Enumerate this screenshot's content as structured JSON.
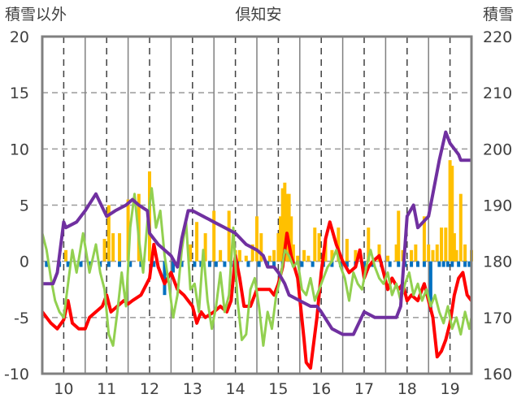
{
  "chart_data": {
    "type": "line",
    "title": "倶知安",
    "ylabel_left": "積雪以外",
    "ylabel_right": "積雪",
    "categories": [
      "10",
      "11",
      "12",
      "13",
      "14",
      "15",
      "16",
      "17",
      "18",
      "19"
    ],
    "ylim_left": [
      -10,
      20
    ],
    "ylim_right": [
      160,
      220
    ],
    "yticks_left": [
      "20",
      "15",
      "10",
      "5",
      "0",
      "-5",
      "-10"
    ],
    "yticks_right": [
      "220",
      "210",
      "200",
      "190",
      "180",
      "170",
      "160"
    ],
    "grid": {
      "x": "dashed",
      "y": "dashed"
    },
    "series": [
      {
        "name": "",
        "axis": "left",
        "color": "#ff0000",
        "x": [
          9.5,
          9.6,
          9.7,
          9.85,
          10.0,
          10.1,
          10.2,
          10.35,
          10.5,
          10.6,
          10.75,
          10.9,
          11.0,
          11.1,
          11.25,
          11.4,
          11.5,
          11.6,
          11.8,
          12.0,
          12.1,
          12.2,
          12.35,
          12.5,
          12.65,
          12.8,
          12.9,
          13.0,
          13.1,
          13.2,
          13.3,
          13.5,
          13.65,
          13.8,
          13.9,
          14.0,
          14.1,
          14.2,
          14.35,
          14.5,
          14.7,
          14.8,
          14.9,
          15.0,
          15.1,
          15.2,
          15.3,
          15.45,
          15.6,
          15.65,
          15.75,
          15.9,
          16.0,
          16.1,
          16.2,
          16.35,
          16.5,
          16.65,
          16.8,
          16.9,
          17.0,
          17.1,
          17.2,
          17.35,
          17.45,
          17.55,
          17.65,
          17.8,
          17.9,
          18.0,
          18.1,
          18.25,
          18.4,
          18.5,
          18.6,
          18.7,
          18.8,
          18.9,
          19.0,
          19.1,
          19.2,
          19.3,
          19.4,
          19.5
        ],
        "y": [
          -4.5,
          -5.0,
          -5.5,
          -6.0,
          -5.2,
          -3.5,
          -5.5,
          -6.0,
          -6.0,
          -5.0,
          -4.5,
          -4.0,
          -3.0,
          -4.5,
          -4.0,
          -3.5,
          -3.8,
          -3.5,
          -3.0,
          -1.5,
          1.5,
          -0.5,
          -2.0,
          -1.0,
          -2.5,
          -3.0,
          -3.5,
          -4.0,
          -5.5,
          -4.5,
          -5.0,
          -4.5,
          -4.0,
          -4.5,
          -3.5,
          0.5,
          -1.5,
          -4.0,
          -4.0,
          -2.5,
          -2.5,
          -2.5,
          -3.0,
          -2.0,
          -0.5,
          2.5,
          0.5,
          -1.5,
          -7.0,
          -9.0,
          -9.5,
          -5.0,
          -1.0,
          2.0,
          3.5,
          1.5,
          0.0,
          -1.0,
          -0.5,
          1.0,
          -1.5,
          -0.5,
          0.0,
          0.5,
          -1.0,
          -2.5,
          -1.5,
          -2.5,
          -2.0,
          -3.5,
          -3.0,
          -3.5,
          -2.0,
          -3.5,
          -5.0,
          -8.5,
          -8.0,
          -7.0,
          -5.5,
          -3.0,
          -1.5,
          -1.0,
          -3.0,
          -3.5
        ]
      },
      {
        "name": "",
        "axis": "left",
        "color": "#92d050",
        "x": [
          9.5,
          9.6,
          9.7,
          9.8,
          9.9,
          10.0,
          10.1,
          10.2,
          10.3,
          10.45,
          10.6,
          10.75,
          10.85,
          10.95,
          11.05,
          11.15,
          11.25,
          11.35,
          11.45,
          11.55,
          11.65,
          11.75,
          11.85,
          11.95,
          12.05,
          12.15,
          12.25,
          12.35,
          12.45,
          12.55,
          12.65,
          12.75,
          12.85,
          12.95,
          13.05,
          13.15,
          13.25,
          13.35,
          13.45,
          13.55,
          13.65,
          13.75,
          13.85,
          13.95,
          14.05,
          14.15,
          14.25,
          14.35,
          14.45,
          14.55,
          14.65,
          14.75,
          14.85,
          14.95,
          15.05,
          15.15,
          15.25,
          15.35,
          15.45,
          15.55,
          15.65,
          15.75,
          15.85,
          15.95,
          16.05,
          16.15,
          16.25,
          16.35,
          16.45,
          16.55,
          16.65,
          16.75,
          16.85,
          16.95,
          17.05,
          17.15,
          17.25,
          17.35,
          17.45,
          17.55,
          17.65,
          17.75,
          17.85,
          17.95,
          18.05,
          18.15,
          18.25,
          18.35,
          18.45,
          18.55,
          18.65,
          18.75,
          18.85,
          18.95,
          19.05,
          19.15,
          19.25,
          19.35,
          19.45,
          19.5
        ],
        "y": [
          2.5,
          1.0,
          -1.5,
          -3.5,
          -4.5,
          -5.0,
          -2.0,
          1.0,
          -1.0,
          2.5,
          -1.0,
          1.5,
          -1.0,
          -2.5,
          -6.5,
          -7.5,
          -4.5,
          -1.0,
          -4.0,
          3.0,
          6.0,
          2.0,
          -1.0,
          3.5,
          6.5,
          3.0,
          4.5,
          0.5,
          -2.0,
          -5.0,
          -3.0,
          1.0,
          3.5,
          -2.5,
          -2.0,
          -4.5,
          1.0,
          -3.5,
          -6.0,
          -4.0,
          -1.0,
          -4.5,
          -3.0,
          3.0,
          -3.5,
          -7.0,
          -6.5,
          -2.5,
          -1.5,
          -4.0,
          -7.5,
          -4.5,
          -6.0,
          -3.0,
          -1.5,
          1.0,
          0.5,
          -0.5,
          0.0,
          -2.5,
          -3.0,
          -1.5,
          -3.5,
          -2.5,
          -1.5,
          -0.5,
          0.0,
          1.0,
          -0.5,
          -1.5,
          -3.5,
          -1.0,
          -2.0,
          -2.5,
          -0.5,
          1.0,
          -0.5,
          -1.5,
          -2.0,
          -1.0,
          -3.0,
          -2.0,
          -3.5,
          -2.0,
          -1.0,
          -3.0,
          -2.0,
          -3.5,
          -2.5,
          -4.0,
          -3.0,
          -4.5,
          -5.5,
          -4.0,
          -6.0,
          -5.0,
          -6.5,
          -4.5,
          -6.0,
          -5.0
        ]
      },
      {
        "name": "",
        "axis": "right",
        "color": "#7030a0",
        "x": [
          9.5,
          9.75,
          9.85,
          10.0,
          10.05,
          10.3,
          10.5,
          10.75,
          11.0,
          11.2,
          11.45,
          11.6,
          11.75,
          11.95,
          12.0,
          12.2,
          12.5,
          12.65,
          12.75,
          12.9,
          13.0,
          13.25,
          13.5,
          13.75,
          14.0,
          14.25,
          14.5,
          14.65,
          14.75,
          14.9,
          15.0,
          15.15,
          15.25,
          15.5,
          15.75,
          15.9,
          16.0,
          16.25,
          16.5,
          16.75,
          17.0,
          17.25,
          17.5,
          17.75,
          17.85,
          18.0,
          18.15,
          18.25,
          18.5,
          18.75,
          18.9,
          19.0,
          19.1,
          19.2,
          19.25,
          19.5
        ],
        "y": [
          176,
          176,
          178,
          187,
          186,
          187,
          189,
          192,
          188,
          189,
          190,
          191,
          190,
          189,
          185,
          183,
          181,
          179,
          184,
          189,
          189,
          188,
          187,
          186,
          185,
          183,
          182,
          181,
          179,
          179,
          178,
          176,
          174,
          173,
          172,
          172,
          171,
          168,
          167,
          167,
          171,
          170,
          170,
          170,
          172,
          188,
          190,
          186,
          188,
          198,
          203,
          201,
          200,
          199,
          198,
          198
        ]
      }
    ],
    "bars": [
      {
        "name": "",
        "axis": "left",
        "color": "#ffc000",
        "x": [
          10.05,
          10.95,
          11.05,
          11.15,
          11.3,
          11.5,
          11.75,
          12.0,
          12.95,
          13.1,
          13.3,
          13.5,
          13.65,
          13.85,
          14.0,
          14.1,
          14.25,
          14.4,
          14.5,
          14.6,
          14.8,
          14.9,
          15.0,
          15.05,
          15.1,
          15.15,
          15.2,
          15.25,
          15.3,
          15.35,
          15.45,
          15.6,
          15.7,
          15.85,
          15.95,
          16.1,
          16.25,
          16.4,
          16.6,
          16.8,
          17.1,
          17.35,
          17.55,
          17.75,
          17.8,
          17.9,
          18.1,
          18.2,
          18.4,
          18.5,
          18.6,
          18.7,
          18.8,
          18.9,
          19.0,
          19.05,
          19.1,
          19.15,
          19.25,
          19.35,
          19.5
        ],
        "y": [
          1.0,
          2.0,
          5.0,
          2.5,
          2.5,
          5.5,
          6.0,
          8.0,
          1.5,
          3.5,
          2.5,
          4.5,
          1.0,
          4.5,
          1.0,
          1.0,
          0.5,
          1.5,
          4.0,
          2.5,
          0.5,
          1.0,
          2.5,
          4.0,
          6.5,
          7.0,
          6.0,
          6.0,
          4.0,
          1.5,
          0.5,
          1.0,
          0.5,
          3.0,
          2.5,
          2.0,
          1.0,
          3.0,
          2.0,
          1.0,
          3.0,
          1.5,
          0.5,
          1.5,
          4.5,
          1.0,
          1.0,
          1.5,
          4.0,
          1.5,
          1.0,
          1.5,
          3.0,
          3.0,
          9.0,
          8.5,
          2.5,
          1.0,
          6.0,
          1.5,
          1.0
        ]
      },
      {
        "name": "",
        "axis": "left",
        "color": "#0070c0",
        "x": [
          9.6,
          9.9,
          10.1,
          10.4,
          10.6,
          10.85,
          11.05,
          11.3,
          11.55,
          11.8,
          12.1,
          12.35,
          12.55,
          12.75,
          13.05,
          13.2,
          13.4,
          13.55,
          13.75,
          13.9,
          14.05,
          14.3,
          14.55,
          14.75,
          14.9,
          15.1,
          15.35,
          15.55,
          15.8,
          16.05,
          16.25,
          16.45,
          16.6,
          16.8,
          17.0,
          17.2,
          17.4,
          17.6,
          17.8,
          17.95,
          18.1,
          18.25,
          18.4,
          18.55,
          18.75,
          18.85,
          18.95,
          19.05,
          19.2,
          19.35,
          19.45
        ],
        "y": [
          -0.5,
          -0.5,
          -0.5,
          -0.5,
          -0.5,
          -0.5,
          -0.5,
          -0.5,
          -0.5,
          -0.5,
          -0.5,
          -3.0,
          -1.0,
          -0.5,
          -0.5,
          -0.5,
          -0.5,
          -0.5,
          -0.5,
          -0.5,
          -0.5,
          -0.5,
          -0.5,
          -0.5,
          -0.5,
          -0.5,
          -0.5,
          -0.5,
          -0.5,
          -0.5,
          -0.5,
          -0.5,
          -0.5,
          -0.5,
          -0.5,
          -0.5,
          -0.5,
          -0.5,
          -0.5,
          -0.5,
          -0.5,
          -0.5,
          -0.5,
          -4.5,
          -0.5,
          -0.5,
          -0.5,
          -0.5,
          -0.5,
          -0.5,
          -0.5
        ]
      }
    ]
  }
}
